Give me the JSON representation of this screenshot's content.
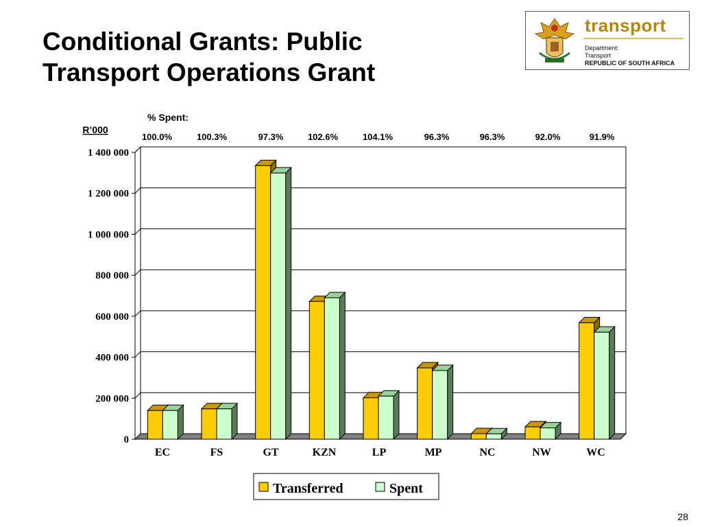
{
  "slide": {
    "title_line1": "Conditional Grants: Public",
    "title_line2": "Transport Operations Grant",
    "page_number": "28"
  },
  "logo": {
    "word": "transport",
    "line1": "Department:",
    "line2": "Transport",
    "line3": "REPUBLIC OF SOUTH AFRICA"
  },
  "colors": {
    "transferred": "#FFCC00",
    "spent": "#CCFFCC",
    "wall": "#ffffff",
    "floor": "#808080"
  },
  "chart_data": {
    "type": "bar",
    "categories": [
      "EC",
      "FS",
      "GT",
      "KZN",
      "LP",
      "MP",
      "NC",
      "NW",
      "WC"
    ],
    "series": [
      {
        "name": "Transferred",
        "values": [
          140000,
          148000,
          1335000,
          672000,
          202000,
          348000,
          27000,
          60000,
          568000
        ]
      },
      {
        "name": "Spent",
        "values": [
          140000,
          148000,
          1299000,
          690000,
          210000,
          335000,
          26000,
          55000,
          522000
        ]
      }
    ],
    "pct_label": "% Spent:",
    "pct_spent": [
      "100.0%",
      "100.3%",
      "97.3%",
      "102.6%",
      "104.1%",
      "96.3%",
      "96.3%",
      "92.0%",
      "91.9%"
    ],
    "ylabel": "R’000",
    "ylim": [
      0,
      1400000
    ],
    "yticks": [
      "0",
      "200 000",
      "400 000",
      "600 000",
      "800 000",
      "1 000 000",
      "1 200 000",
      "1 400 000"
    ],
    "grid": true,
    "legend": "bottom"
  }
}
